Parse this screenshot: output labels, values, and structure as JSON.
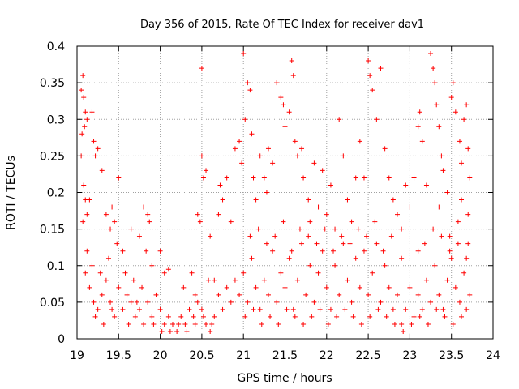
{
  "chart_data": {
    "type": "scatter",
    "title": "Day 356 of 2015, Rate Of TEC Index for receiver dav1",
    "xlabel": "GPS time / hours",
    "ylabel": "ROTI / TECUs",
    "xlim": [
      19,
      24
    ],
    "ylim": [
      0,
      0.4
    ],
    "xticks": [
      "19",
      "19.5",
      "20",
      "20.5",
      "21",
      "21.5",
      "22",
      "22.5",
      "23",
      "23.5",
      "24"
    ],
    "yticks": [
      "0",
      "0.05",
      "0.1",
      "0.15",
      "0.2",
      "0.25",
      "0.3",
      "0.35",
      "0.4"
    ],
    "grid": true,
    "marker": "+",
    "color": "#ff0000",
    "series": [
      {
        "name": "dav1",
        "points": [
          [
            19.05,
            0.34
          ],
          [
            19.07,
            0.36
          ],
          [
            19.08,
            0.33
          ],
          [
            19.1,
            0.31
          ],
          [
            19.12,
            0.3
          ],
          [
            19.06,
            0.28
          ],
          [
            19.09,
            0.29
          ],
          [
            19.05,
            0.25
          ],
          [
            19.08,
            0.21
          ],
          [
            19.1,
            0.19
          ],
          [
            19.07,
            0.16
          ],
          [
            19.12,
            0.17
          ],
          [
            19.2,
            0.27
          ],
          [
            19.22,
            0.25
          ],
          [
            19.25,
            0.26
          ],
          [
            19.3,
            0.23
          ],
          [
            19.42,
            0.18
          ],
          [
            19.45,
            0.16
          ],
          [
            19.5,
            0.22
          ],
          [
            19.48,
            0.13
          ],
          [
            19.18,
            0.31
          ],
          [
            19.15,
            0.19
          ],
          [
            19.35,
            0.17
          ],
          [
            19.4,
            0.15
          ],
          [
            19.55,
            0.12
          ],
          [
            19.85,
            0.17
          ],
          [
            19.87,
            0.16
          ],
          [
            19.8,
            0.18
          ],
          [
            19.65,
            0.15
          ],
          [
            19.75,
            0.14
          ],
          [
            19.83,
            0.12
          ],
          [
            19.9,
            0.1
          ],
          [
            20.0,
            0.12
          ],
          [
            20.05,
            0.09
          ],
          [
            20.1,
            0.095
          ],
          [
            20.45,
            0.17
          ],
          [
            20.48,
            0.16
          ],
          [
            20.5,
            0.25
          ],
          [
            20.52,
            0.22
          ],
          [
            20.55,
            0.23
          ],
          [
            20.5,
            0.37
          ],
          [
            20.6,
            0.14
          ],
          [
            20.65,
            0.08
          ],
          [
            20.7,
            0.17
          ],
          [
            20.72,
            0.21
          ],
          [
            20.75,
            0.19
          ],
          [
            20.8,
            0.22
          ],
          [
            20.85,
            0.16
          ],
          [
            20.9,
            0.26
          ],
          [
            20.95,
            0.27
          ],
          [
            20.98,
            0.24
          ],
          [
            21.0,
            0.39
          ],
          [
            21.02,
            0.3
          ],
          [
            21.05,
            0.35
          ],
          [
            21.08,
            0.34
          ],
          [
            21.1,
            0.28
          ],
          [
            21.12,
            0.22
          ],
          [
            21.15,
            0.19
          ],
          [
            21.2,
            0.25
          ],
          [
            21.25,
            0.22
          ],
          [
            21.28,
            0.2
          ],
          [
            21.3,
            0.26
          ],
          [
            21.35,
            0.24
          ],
          [
            21.4,
            0.35
          ],
          [
            21.45,
            0.33
          ],
          [
            21.48,
            0.32
          ],
          [
            21.5,
            0.29
          ],
          [
            21.55,
            0.31
          ],
          [
            21.58,
            0.38
          ],
          [
            21.6,
            0.36
          ],
          [
            21.62,
            0.27
          ],
          [
            21.65,
            0.25
          ],
          [
            21.7,
            0.26
          ],
          [
            21.72,
            0.22
          ],
          [
            21.78,
            0.19
          ],
          [
            21.8,
            0.16
          ],
          [
            21.85,
            0.24
          ],
          [
            21.9,
            0.18
          ],
          [
            21.95,
            0.23
          ],
          [
            22.0,
            0.17
          ],
          [
            22.05,
            0.21
          ],
          [
            22.1,
            0.15
          ],
          [
            22.15,
            0.3
          ],
          [
            22.2,
            0.25
          ],
          [
            22.25,
            0.19
          ],
          [
            22.3,
            0.16
          ],
          [
            22.35,
            0.22
          ],
          [
            22.4,
            0.27
          ],
          [
            22.45,
            0.22
          ],
          [
            22.5,
            0.38
          ],
          [
            22.52,
            0.36
          ],
          [
            22.55,
            0.34
          ],
          [
            22.6,
            0.3
          ],
          [
            22.65,
            0.37
          ],
          [
            22.7,
            0.26
          ],
          [
            22.75,
            0.22
          ],
          [
            22.8,
            0.19
          ],
          [
            22.85,
            0.17
          ],
          [
            22.9,
            0.15
          ],
          [
            22.95,
            0.21
          ],
          [
            23.0,
            0.18
          ],
          [
            23.05,
            0.22
          ],
          [
            23.1,
            0.29
          ],
          [
            23.12,
            0.31
          ],
          [
            23.15,
            0.27
          ],
          [
            23.2,
            0.21
          ],
          [
            23.25,
            0.39
          ],
          [
            23.28,
            0.37
          ],
          [
            23.3,
            0.35
          ],
          [
            23.32,
            0.32
          ],
          [
            23.35,
            0.29
          ],
          [
            23.38,
            0.25
          ],
          [
            23.4,
            0.23
          ],
          [
            23.45,
            0.2
          ],
          [
            23.5,
            0.33
          ],
          [
            23.52,
            0.35
          ],
          [
            23.55,
            0.31
          ],
          [
            23.6,
            0.27
          ],
          [
            23.62,
            0.24
          ],
          [
            23.65,
            0.3
          ],
          [
            23.68,
            0.32
          ],
          [
            23.7,
            0.26
          ],
          [
            23.72,
            0.22
          ],
          [
            23.35,
            0.18
          ],
          [
            23.58,
            0.16
          ],
          [
            23.48,
            0.14
          ],
          [
            23.62,
            0.19
          ],
          [
            23.7,
            0.17
          ],
          [
            23.1,
            0.12
          ],
          [
            22.9,
            0.11
          ],
          [
            19.1,
            0.09
          ],
          [
            19.15,
            0.07
          ],
          [
            19.2,
            0.05
          ],
          [
            19.25,
            0.04
          ],
          [
            19.3,
            0.06
          ],
          [
            19.35,
            0.08
          ],
          [
            19.4,
            0.05
          ],
          [
            19.45,
            0.03
          ],
          [
            19.5,
            0.07
          ],
          [
            19.55,
            0.04
          ],
          [
            19.6,
            0.06
          ],
          [
            19.65,
            0.05
          ],
          [
            19.7,
            0.03
          ],
          [
            19.75,
            0.04
          ],
          [
            19.8,
            0.02
          ],
          [
            19.85,
            0.05
          ],
          [
            19.9,
            0.03
          ],
          [
            19.95,
            0.06
          ],
          [
            20.0,
            0.04
          ],
          [
            20.05,
            0.02
          ],
          [
            20.1,
            0.03
          ],
          [
            20.15,
            0.02
          ],
          [
            20.2,
            0.01
          ],
          [
            20.25,
            0.03
          ],
          [
            20.3,
            0.02
          ],
          [
            20.35,
            0.04
          ],
          [
            20.4,
            0.03
          ],
          [
            20.45,
            0.05
          ],
          [
            20.5,
            0.04
          ],
          [
            20.55,
            0.02
          ],
          [
            20.6,
            0.01
          ],
          [
            20.65,
            0.03
          ],
          [
            20.7,
            0.06
          ],
          [
            20.75,
            0.04
          ],
          [
            20.8,
            0.07
          ],
          [
            20.85,
            0.05
          ],
          [
            20.9,
            0.08
          ],
          [
            20.95,
            0.06
          ],
          [
            21.0,
            0.09
          ],
          [
            21.05,
            0.05
          ],
          [
            21.1,
            0.11
          ],
          [
            21.15,
            0.07
          ],
          [
            21.2,
            0.04
          ],
          [
            21.25,
            0.08
          ],
          [
            21.3,
            0.06
          ],
          [
            21.35,
            0.12
          ],
          [
            21.4,
            0.05
          ],
          [
            21.45,
            0.09
          ],
          [
            21.5,
            0.07
          ],
          [
            21.55,
            0.11
          ],
          [
            21.6,
            0.04
          ],
          [
            21.65,
            0.08
          ],
          [
            21.7,
            0.13
          ],
          [
            21.75,
            0.06
          ],
          [
            21.8,
            0.1
          ],
          [
            21.85,
            0.05
          ],
          [
            21.9,
            0.09
          ],
          [
            21.95,
            0.12
          ],
          [
            22.0,
            0.07
          ],
          [
            22.05,
            0.04
          ],
          [
            22.1,
            0.1
          ],
          [
            22.15,
            0.06
          ],
          [
            22.2,
            0.13
          ],
          [
            22.25,
            0.08
          ],
          [
            22.3,
            0.05
          ],
          [
            22.35,
            0.11
          ],
          [
            22.4,
            0.07
          ],
          [
            22.45,
            0.12
          ],
          [
            22.5,
            0.06
          ],
          [
            22.55,
            0.09
          ],
          [
            22.6,
            0.13
          ],
          [
            22.65,
            0.05
          ],
          [
            22.7,
            0.1
          ],
          [
            22.75,
            0.07
          ],
          [
            22.8,
            0.04
          ],
          [
            22.85,
            0.06
          ],
          [
            22.9,
            0.02
          ],
          [
            22.95,
            0.04
          ],
          [
            23.0,
            0.07
          ],
          [
            23.05,
            0.03
          ],
          [
            23.1,
            0.06
          ],
          [
            23.15,
            0.04
          ],
          [
            23.2,
            0.08
          ],
          [
            23.25,
            0.05
          ],
          [
            23.3,
            0.1
          ],
          [
            23.35,
            0.06
          ],
          [
            23.4,
            0.04
          ],
          [
            23.45,
            0.08
          ],
          [
            23.5,
            0.11
          ],
          [
            23.55,
            0.07
          ],
          [
            23.6,
            0.05
          ],
          [
            23.65,
            0.09
          ],
          [
            23.7,
            0.13
          ],
          [
            23.72,
            0.06
          ],
          [
            23.68,
            0.04
          ],
          [
            19.12,
            0.12
          ],
          [
            19.18,
            0.1
          ],
          [
            19.28,
            0.09
          ],
          [
            19.38,
            0.11
          ],
          [
            19.58,
            0.09
          ],
          [
            19.68,
            0.08
          ],
          [
            19.78,
            0.07
          ],
          [
            20.28,
            0.07
          ],
          [
            20.38,
            0.09
          ],
          [
            20.42,
            0.06
          ],
          [
            20.58,
            0.08
          ],
          [
            21.08,
            0.14
          ],
          [
            21.18,
            0.15
          ],
          [
            21.28,
            0.13
          ],
          [
            21.38,
            0.14
          ],
          [
            21.48,
            0.16
          ],
          [
            21.58,
            0.12
          ],
          [
            21.68,
            0.15
          ],
          [
            21.78,
            0.14
          ],
          [
            21.88,
            0.13
          ],
          [
            21.98,
            0.15
          ],
          [
            22.08,
            0.12
          ],
          [
            22.18,
            0.14
          ],
          [
            22.28,
            0.13
          ],
          [
            22.38,
            0.15
          ],
          [
            22.48,
            0.14
          ],
          [
            22.58,
            0.16
          ],
          [
            22.68,
            0.12
          ],
          [
            22.78,
            0.14
          ],
          [
            23.18,
            0.13
          ],
          [
            23.28,
            0.15
          ],
          [
            23.38,
            0.14
          ],
          [
            23.48,
            0.12
          ],
          [
            23.58,
            0.13
          ],
          [
            23.68,
            0.11
          ],
          [
            19.22,
            0.03
          ],
          [
            19.32,
            0.02
          ],
          [
            19.42,
            0.04
          ],
          [
            19.62,
            0.02
          ],
          [
            19.72,
            0.05
          ],
          [
            19.92,
            0.02
          ],
          [
            20.02,
            0.01
          ],
          [
            20.12,
            0.01
          ],
          [
            20.22,
            0.02
          ],
          [
            20.32,
            0.01
          ],
          [
            20.42,
            0.02
          ],
          [
            20.52,
            0.03
          ],
          [
            20.62,
            0.02
          ],
          [
            21.02,
            0.03
          ],
          [
            21.12,
            0.04
          ],
          [
            21.22,
            0.02
          ],
          [
            21.32,
            0.03
          ],
          [
            21.42,
            0.02
          ],
          [
            21.52,
            0.04
          ],
          [
            21.62,
            0.03
          ],
          [
            21.72,
            0.02
          ],
          [
            21.82,
            0.03
          ],
          [
            21.92,
            0.04
          ],
          [
            22.02,
            0.02
          ],
          [
            22.12,
            0.03
          ],
          [
            22.22,
            0.04
          ],
          [
            22.32,
            0.03
          ],
          [
            22.42,
            0.02
          ],
          [
            22.52,
            0.03
          ],
          [
            22.62,
            0.04
          ],
          [
            22.72,
            0.03
          ],
          [
            22.82,
            0.02
          ],
          [
            22.92,
            0.01
          ],
          [
            23.02,
            0.02
          ],
          [
            23.12,
            0.03
          ],
          [
            23.22,
            0.02
          ],
          [
            23.32,
            0.04
          ],
          [
            23.42,
            0.03
          ],
          [
            23.52,
            0.02
          ],
          [
            23.62,
            0.03
          ]
        ]
      }
    ]
  }
}
